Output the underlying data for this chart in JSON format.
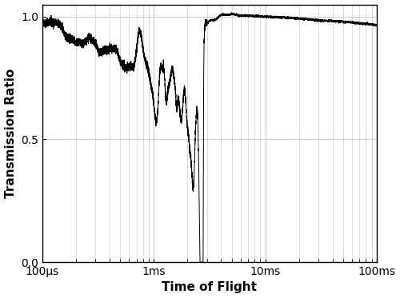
{
  "xlabel": "Time of Flight",
  "ylabel": "Transmission Ratio",
  "xlim_log": [
    0.0001,
    0.1
  ],
  "ylim": [
    0.0,
    1.05
  ],
  "yticks": [
    0.0,
    0.5,
    1.0
  ],
  "ytick_labels": [
    "0.0",
    "0.5",
    "1.0"
  ],
  "xtick_positions": [
    0.0001,
    0.001,
    0.01,
    0.1
  ],
  "xtick_labels": [
    "100μs",
    "1ms",
    "10ms",
    "100ms"
  ],
  "line_color": "#000000",
  "background_color": "#ffffff",
  "grid_color": "#cccccc",
  "figsize": [
    5.0,
    3.73
  ],
  "dpi": 100
}
